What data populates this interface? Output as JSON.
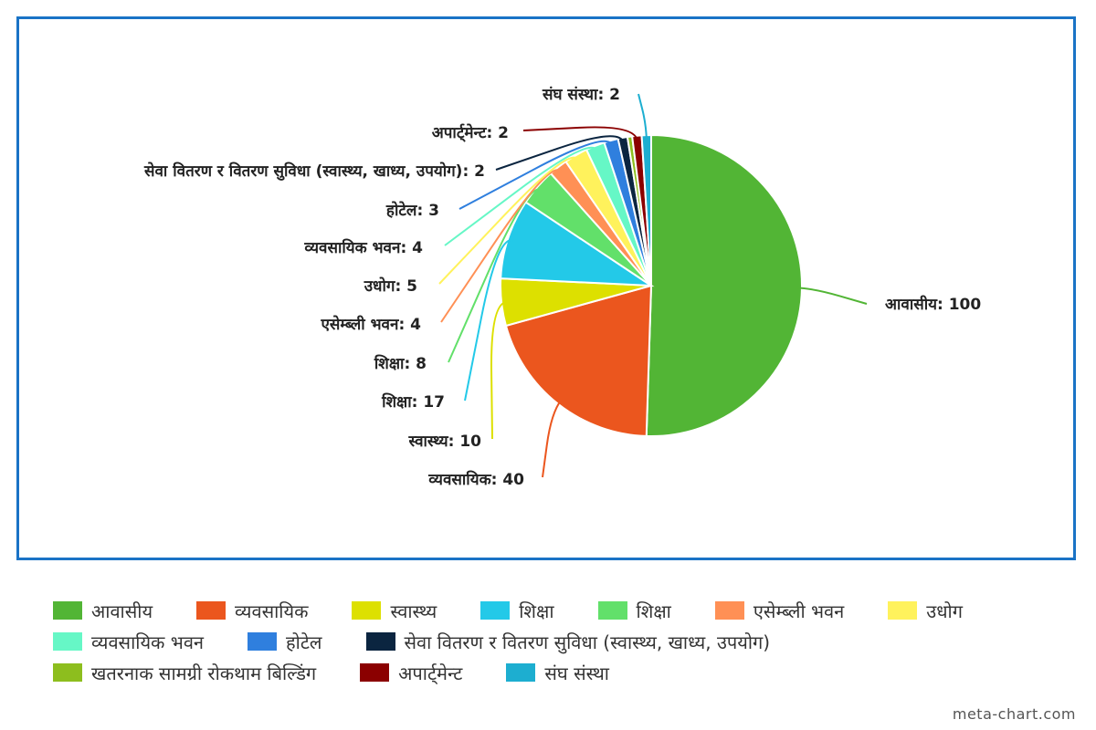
{
  "chart_data": {
    "type": "pie",
    "slices": [
      {
        "label": "आवासीय",
        "value": 100,
        "color": "#52b535",
        "display": "आवासीय: 100"
      },
      {
        "label": "व्यवसायिक",
        "value": 40,
        "color": "#eb561e",
        "display": "व्यवसायिक: 40"
      },
      {
        "label": "स्वास्थ्य",
        "value": 10,
        "color": "#dde000",
        "display": "स्वास्थ्य: 10"
      },
      {
        "label": "शिक्षा",
        "value": 17,
        "color": "#23c9e8",
        "display": "शिक्षा: 17"
      },
      {
        "label": "शिक्षा",
        "value": 8,
        "color": "#62e06a",
        "display": "शिक्षा: 8"
      },
      {
        "label": "एसेम्ब्ली भवन",
        "value": 4,
        "color": "#ff9055",
        "display": "एसेम्ब्ली भवन: 4"
      },
      {
        "label": "उधोग",
        "value": 5,
        "color": "#fff25c",
        "display": "उधोग: 5"
      },
      {
        "label": "व्यवसायिक भवन",
        "value": 4,
        "color": "#66f7c6",
        "display": "व्यवसायिक भवन: 4"
      },
      {
        "label": "होटेल",
        "value": 3,
        "color": "#2f7fde",
        "display": "होटेल: 3"
      },
      {
        "label": "सेवा वितरण र वितरण सुविधा (स्वास्थ्य, खाध्य, उपयोग)",
        "value": 2,
        "color": "#0b2540",
        "display": "सेवा वितरण र वितरण सुविधा (स्वास्थ्य, खाध्य, उपयोग): 2"
      },
      {
        "label": "खतरनाक सामग्री रोकथाम बिल्डिंग",
        "value": 1,
        "color": "#8dbe1e",
        "display": ""
      },
      {
        "label": "अपार्ट्मेन्ट",
        "value": 2,
        "color": "#8b0000",
        "display": "अपार्ट्मेन्ट: 2"
      },
      {
        "label": "संघ संस्था",
        "value": 2,
        "color": "#1daed0",
        "display": "संघ संस्था: 2"
      }
    ],
    "legend_position": "bottom"
  },
  "legend": {
    "rows": [
      [
        0,
        1,
        2,
        3,
        4,
        5,
        6
      ],
      [
        7,
        8,
        9
      ],
      [
        10,
        11,
        12
      ]
    ]
  },
  "watermark": "meta-chart.com"
}
